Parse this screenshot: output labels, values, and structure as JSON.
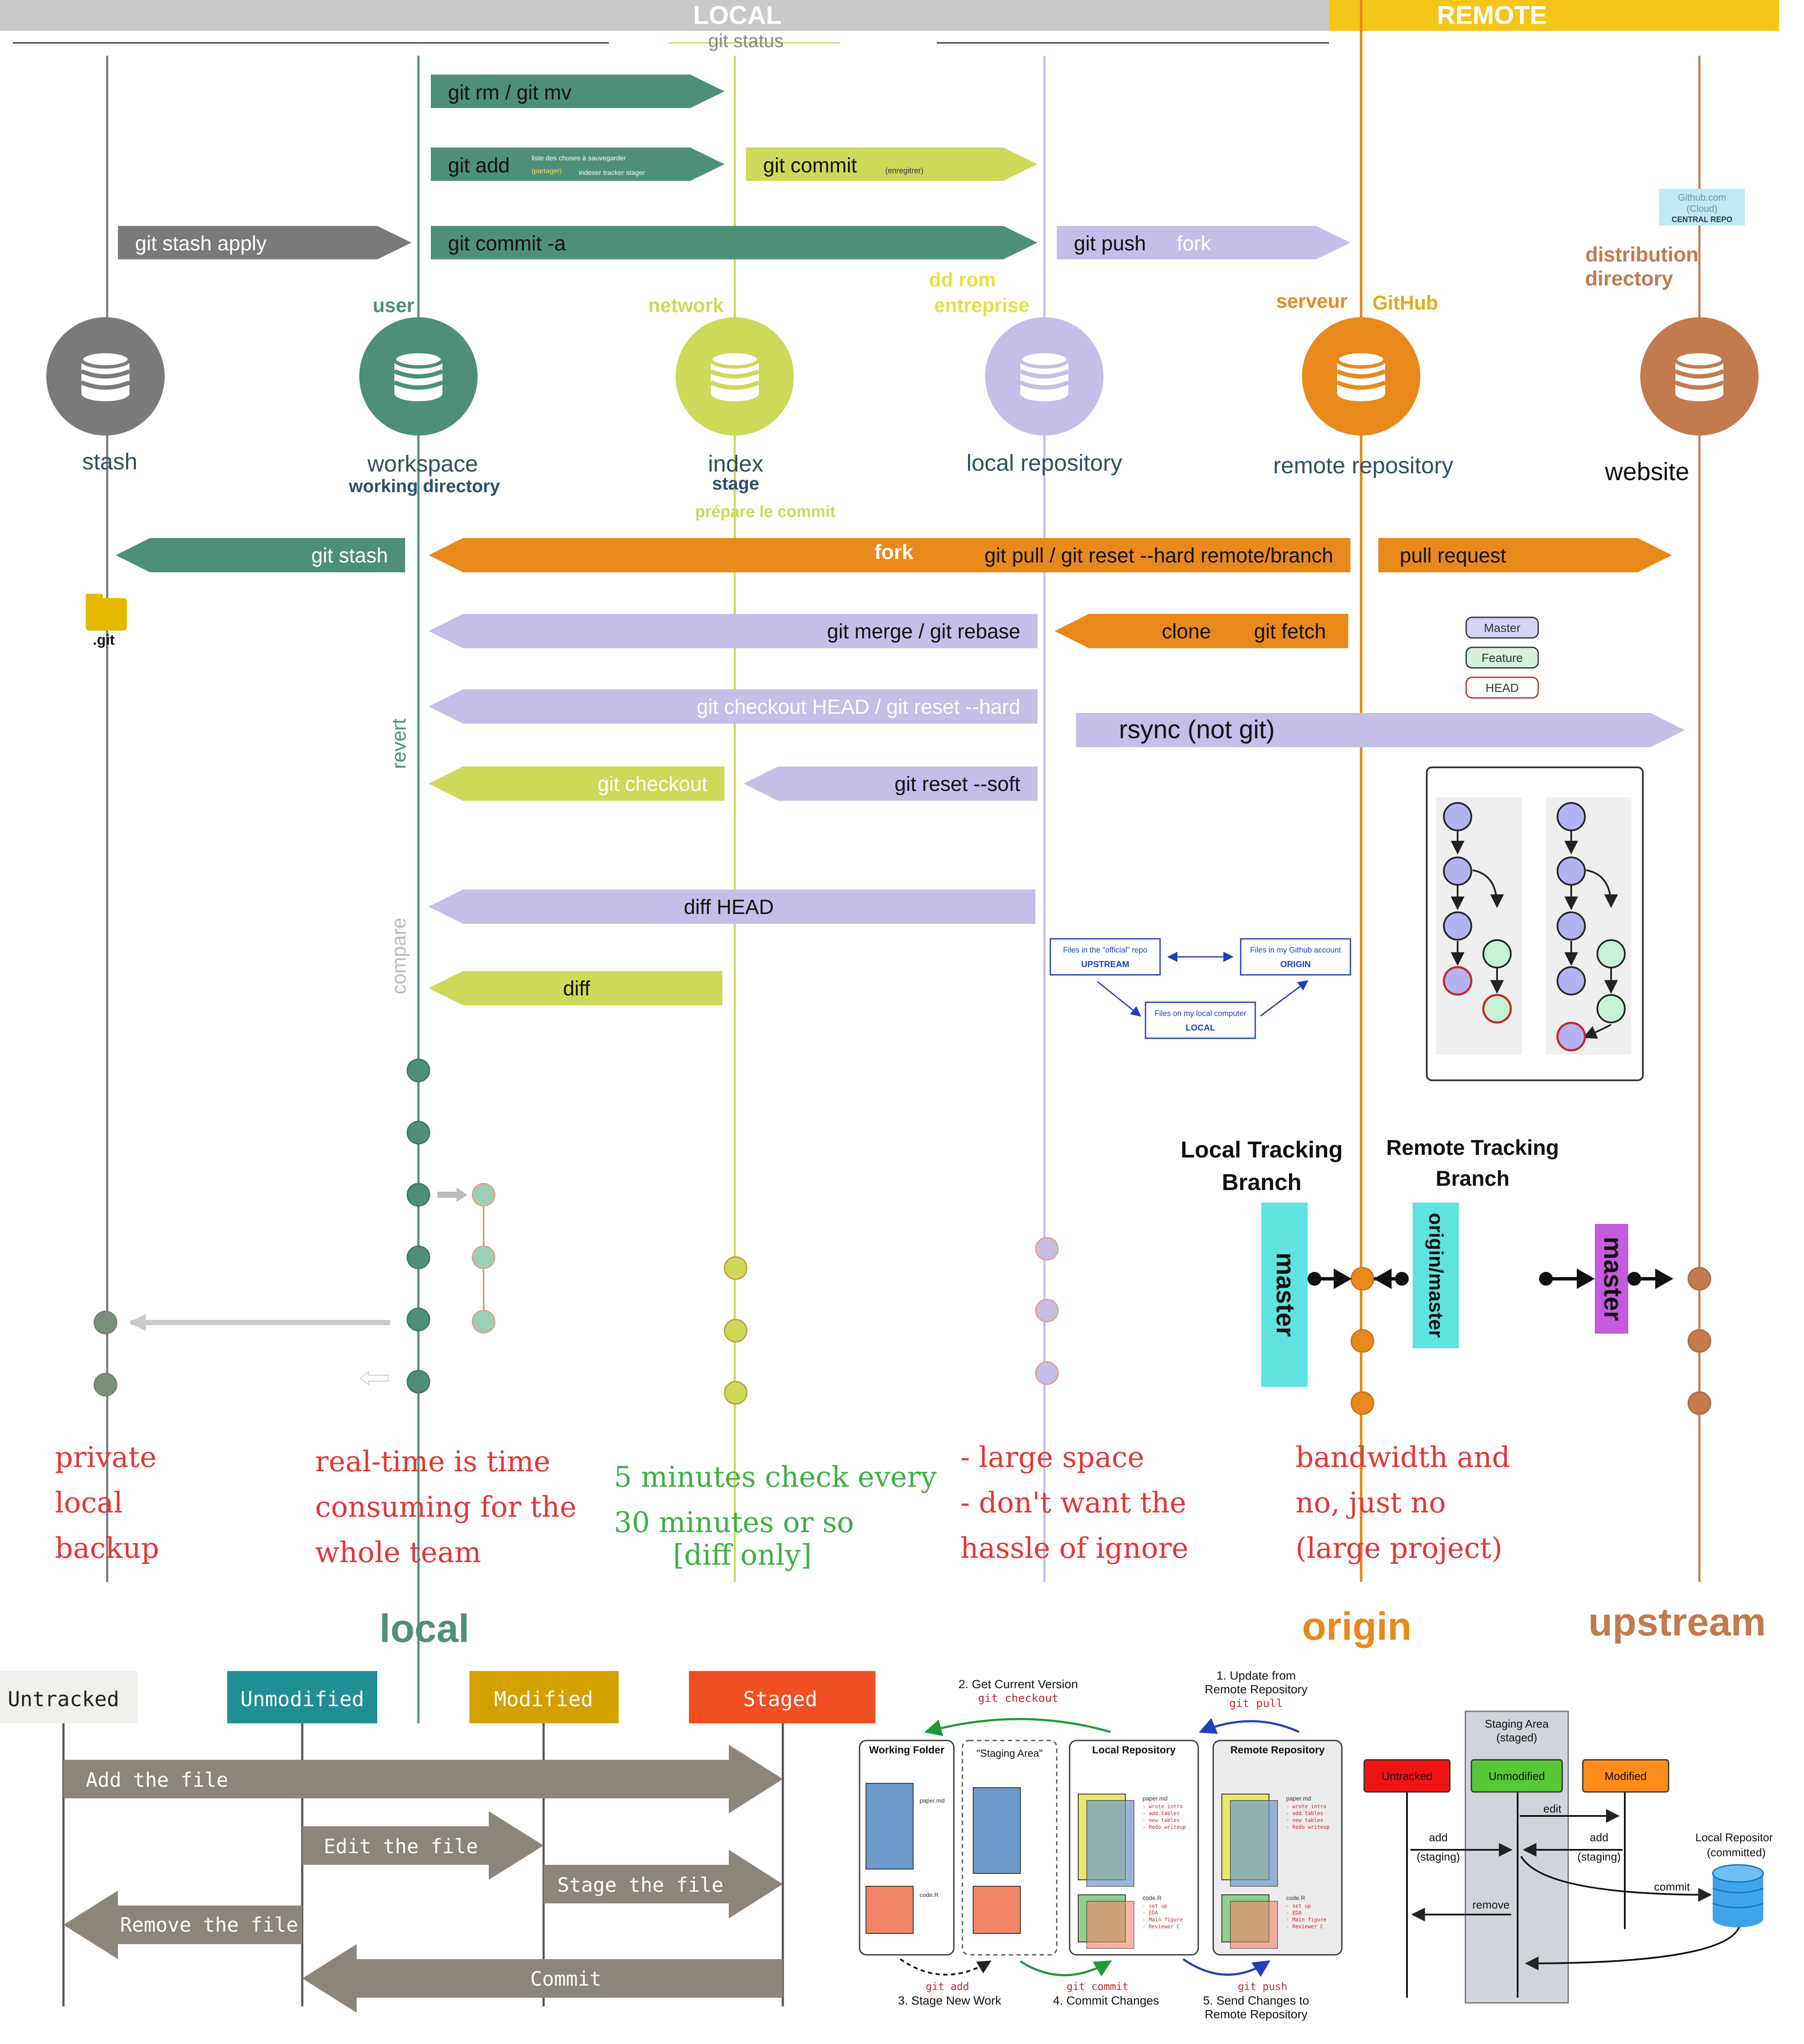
{
  "header": {
    "local": "LOCAL",
    "remote": "REMOTE",
    "git_status": "git status"
  },
  "colors": {
    "stash": "#7a7a7a",
    "workspace": "#4e8f78",
    "index": "#cdd958",
    "local_repo": "#c6bde8",
    "remote_repo": "#e8891c",
    "website": "#c27a4e",
    "local_bar": "#c9c9c9",
    "remote_bar": "#f5c518",
    "red_text": "#e63535",
    "green_text": "#3cb043"
  },
  "columns": {
    "stash": {
      "label": "stash",
      "icon": "database-icon"
    },
    "workspace": {
      "label": "workspace",
      "sublabel": "working directory",
      "top_label": "user"
    },
    "index": {
      "label": "index",
      "sublabel": "stage",
      "note": "prépare le commit",
      "top_label": "network"
    },
    "local_repo": {
      "label": "local repository",
      "top_label_1": "dd rom",
      "top_label_2": "entreprise"
    },
    "remote_repo": {
      "label": "remote repository",
      "top_label_1": "serveur",
      "top_label_2": "GitHub"
    },
    "website": {
      "label": "website",
      "top_label_1": "distribution",
      "top_label_2": "directory",
      "badge_1": "Github.com",
      "badge_2": "(Cloud)",
      "badge_3": "CENTRAL REPO"
    }
  },
  "commands": {
    "git_rm_mv": "git rm / git mv",
    "git_add": "git add",
    "git_add_note_1": "liste des choses à sauvegarder",
    "git_add_note_2": "(partager)",
    "git_add_note_3": "indexer tracker stager",
    "git_commit": "git commit",
    "git_commit_note": "(enregitrer)",
    "git_stash_apply": "git stash apply",
    "git_commit_a": "git commit -a",
    "git_push": "git push",
    "fork_right": "fork",
    "git_stash": "git stash",
    "fork_left": "fork",
    "git_pull_reset": "git pull / git reset --hard remote/branch",
    "pull_request": "pull request",
    "git_merge_rebase": "git merge / git rebase",
    "clone": "clone",
    "git_fetch": "git fetch",
    "git_checkout_head": "git checkout HEAD / git reset --hard",
    "rsync": "rsync (not git)",
    "git_checkout": "git checkout",
    "git_reset_soft": "git reset --soft",
    "diff_head": "diff HEAD",
    "diff": "diff",
    "revert": "revert",
    "compare": "compare",
    "git_folder": ".git"
  },
  "branch_legend": {
    "master": "Master",
    "feature": "Feature",
    "head": "HEAD"
  },
  "repo_diagram": {
    "upstream_1": "Files in the \"official\" repo",
    "upstream_2": "UPSTREAM",
    "origin_1": "Files in my Github account",
    "origin_2": "ORIGIN",
    "local_1": "Files on my local computer",
    "local_2": "LOCAL"
  },
  "tracking": {
    "local_title_1": "Local Tracking",
    "local_title_2": "Branch",
    "remote_title_1": "Remote Tracking",
    "remote_title_2": "Branch",
    "master": "master",
    "origin_master": "origin/master",
    "upstream_master": "master"
  },
  "notes": {
    "stash": [
      "private",
      "local",
      "backup"
    ],
    "workspace": [
      "real-time is time",
      "consuming for the",
      "whole team"
    ],
    "index": [
      "5 minutes check every",
      "30 minutes or so",
      "[diff only]"
    ],
    "local_repo": [
      "- large space",
      "- don't want the",
      "hassle of ignore"
    ],
    "remote_repo": [
      "bandwidth and",
      "no, just no",
      "(large project)"
    ]
  },
  "bottom_labels": {
    "local": "local",
    "origin": "origin",
    "upstream": "upstream"
  },
  "lifecycle": {
    "states": [
      "Untracked",
      "Unmodified",
      "Modified",
      "Staged"
    ],
    "arrows": [
      "Add the file",
      "Edit the file",
      "Stage the file",
      "Remove the file",
      "Commit"
    ]
  },
  "workflow": {
    "step1_1": "1. Update from",
    "step1_2": "Remote Repository",
    "step1_cmd": "git pull",
    "step2": "2. Get Current Version",
    "step2_cmd": "git checkout",
    "step3": "3. Stage New Work",
    "step3_cmd": "git add",
    "step4": "4. Commit Changes",
    "step4_cmd": "git commit",
    "step5_1": "5. Send Changes to",
    "step5_2": "Remote Repository",
    "step5_cmd": "git push",
    "working_folder": "Working Folder",
    "staging_area": "\"Staging Area\"",
    "local_repository": "Local Repository",
    "remote_repository": "Remote Repository",
    "paper_md": "paper.md",
    "code_r": "code.R",
    "paper_lines": [
      "- wrote intro",
      "- add tables",
      "- new tables",
      "- Redo writeup"
    ],
    "code_lines": [
      "- set up",
      "- EDA",
      "- Main figure",
      "- Reviewer C"
    ]
  },
  "staging_diagram": {
    "staging_1": "Staging Area",
    "staging_2": "(staged)",
    "untracked": "Untracked",
    "unmodified": "Unmodified",
    "modified": "Modified",
    "edit": "edit",
    "add_1": "add",
    "add_2": "(staging)",
    "remove": "remove",
    "commit": "commit",
    "local_repo_1": "Local Repositor",
    "local_repo_2": "(committed)"
  }
}
